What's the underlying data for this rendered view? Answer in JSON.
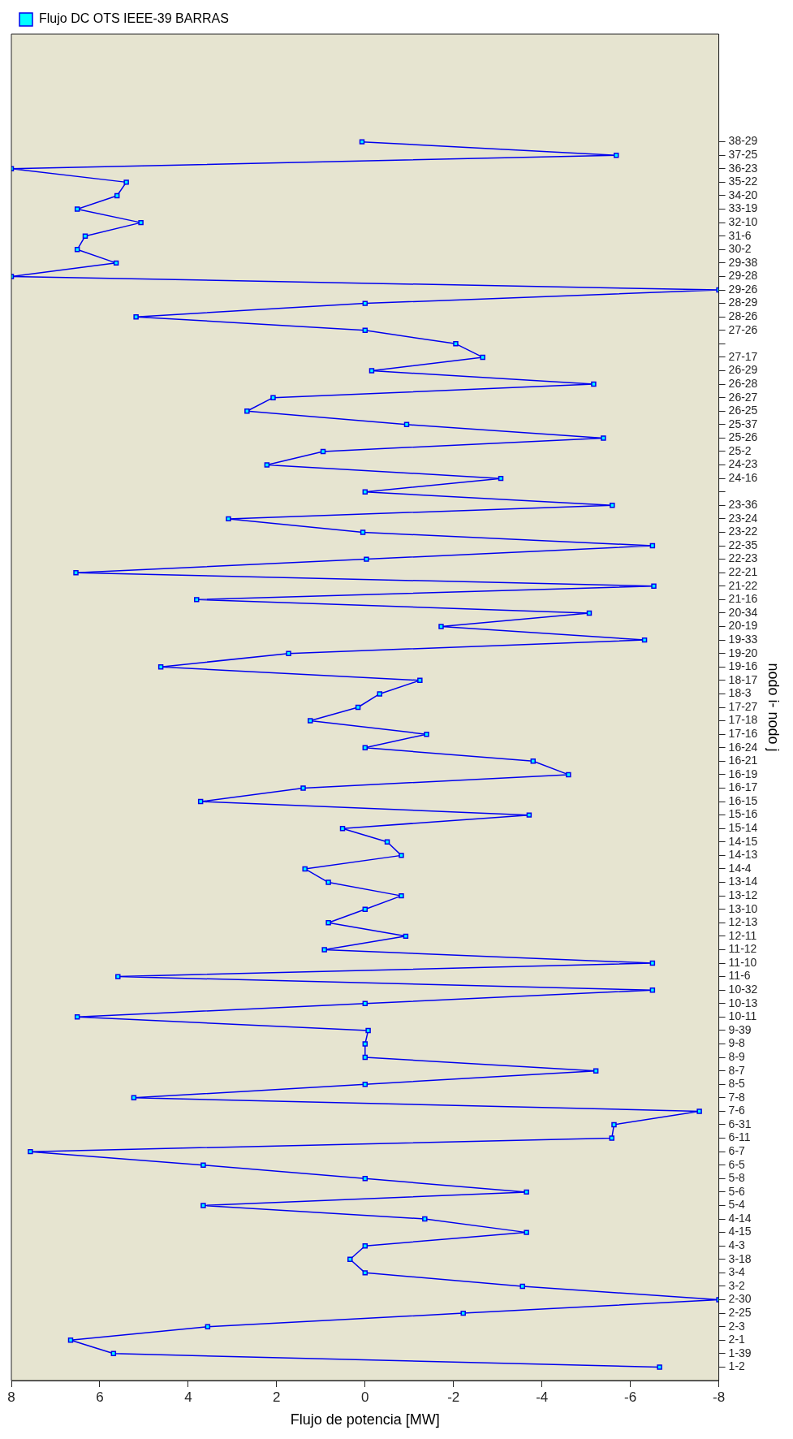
{
  "chart_data": {
    "type": "line",
    "orientation": "horizontal",
    "xlabel": "Flujo de potencia [MW]",
    "ylabel": "nodo i- nodo j",
    "categories": [
      "38-29",
      "37-25",
      "36-23",
      "35-22",
      "34-20",
      "33-19",
      "32-10",
      "31-6",
      "30-2",
      "29-38",
      "29-28",
      "29-26",
      "28-29",
      "28-26",
      "27-26",
      null,
      "27-17",
      "26-29",
      "26-28",
      "26-27",
      "26-25",
      "25-37",
      "25-26",
      "25-2",
      "24-23",
      "24-16",
      null,
      "23-36",
      "23-24",
      "23-22",
      "22-35",
      "22-23",
      "22-21",
      "21-22",
      "21-16",
      "20-34",
      "20-19",
      "19-33",
      "19-20",
      "19-16",
      "18-17",
      "18-3",
      "17-27",
      "17-18",
      "17-16",
      "16-24",
      "16-21",
      "16-19",
      "16-17",
      "16-15",
      "15-16",
      "15-14",
      "14-15",
      "14-13",
      "14-4",
      "13-14",
      "13-12",
      "13-10",
      "12-13",
      "12-11",
      "11-12",
      "11-10",
      "11-6",
      "10-32",
      "10-13",
      "10-11",
      "9-39",
      "9-8",
      "8-9",
      "8-7",
      "8-5",
      "7-8",
      "7-6",
      "6-31",
      "6-11",
      "6-7",
      "6-5",
      "5-8",
      "5-6",
      "5-4",
      "4-14",
      "4-15",
      "4-3",
      "3-18",
      "3-4",
      "3-2",
      "2-30",
      "2-25",
      "2-3",
      "2-1",
      "1-39",
      "1-2"
    ],
    "series": [
      {
        "name": "Flujo DC OTS IEEE-39 BARRAS",
        "color": "#0000ee",
        "values": [
          0.07,
          -5.68,
          8,
          5.4,
          5.61,
          6.51,
          5.07,
          6.33,
          6.51,
          5.63,
          8,
          -8,
          0,
          5.18,
          0,
          -2.05,
          -2.66,
          -0.15,
          -5.17,
          2.08,
          2.67,
          -0.94,
          -5.39,
          0.95,
          2.22,
          -3.07,
          0,
          -5.59,
          3.09,
          0.05,
          -6.5,
          -0.03,
          6.54,
          -6.53,
          3.81,
          -5.07,
          -1.72,
          -6.32,
          1.73,
          4.62,
          -1.24,
          -0.33,
          0.16,
          1.24,
          -1.39,
          0,
          -3.8,
          -4.6,
          1.4,
          3.72,
          -3.71,
          0.51,
          -0.5,
          -0.82,
          1.36,
          0.83,
          -0.82,
          0,
          0.83,
          -0.92,
          0.92,
          -6.5,
          5.59,
          -6.5,
          0,
          6.51,
          -0.07,
          0,
          0,
          -5.22,
          0,
          5.23,
          -7.56,
          -5.63,
          -5.58,
          7.57,
          3.66,
          0,
          -3.65,
          3.66,
          -1.35,
          -3.65,
          0,
          0.34,
          0,
          -3.56,
          -8,
          -2.22,
          3.56,
          6.66,
          5.69,
          -6.66
        ]
      }
    ],
    "xlim": [
      8,
      -8
    ],
    "xticks": [
      8,
      6,
      4,
      2,
      0,
      -2,
      -4,
      -6,
      -8
    ],
    "marker": "square",
    "line_style": "solid",
    "legend": "top left"
  }
}
